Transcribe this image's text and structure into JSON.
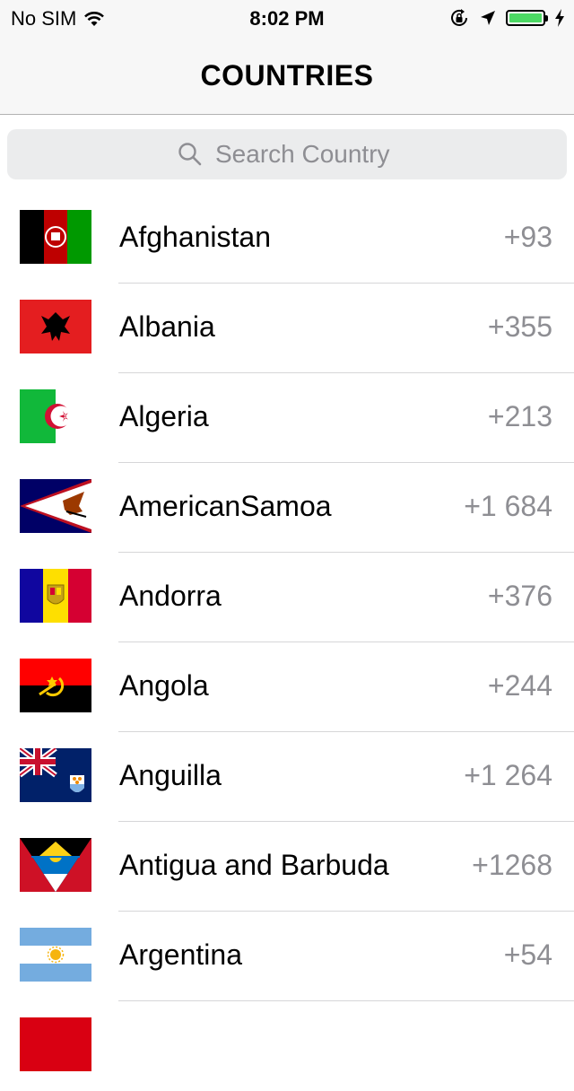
{
  "status_bar": {
    "carrier": "No SIM",
    "time": "8:02 PM",
    "battery_color": "#4cd964"
  },
  "nav": {
    "title": "COUNTRIES"
  },
  "search": {
    "placeholder": "Search Country",
    "value": ""
  },
  "countries": [
    {
      "name": "Afghanistan",
      "code": "+93",
      "flag": "afghanistan-flag-icon"
    },
    {
      "name": "Albania",
      "code": "+355",
      "flag": "albania-flag-icon"
    },
    {
      "name": "Algeria",
      "code": "+213",
      "flag": "algeria-flag-icon"
    },
    {
      "name": "AmericanSamoa",
      "code": "+1 684",
      "flag": "american-samoa-flag-icon"
    },
    {
      "name": "Andorra",
      "code": "+376",
      "flag": "andorra-flag-icon"
    },
    {
      "name": "Angola",
      "code": "+244",
      "flag": "angola-flag-icon"
    },
    {
      "name": "Anguilla",
      "code": "+1 264",
      "flag": "anguilla-flag-icon"
    },
    {
      "name": "Antigua and Barbuda",
      "code": "+1268",
      "flag": "antigua-barbuda-flag-icon"
    },
    {
      "name": "Argentina",
      "code": "+54",
      "flag": "argentina-flag-icon"
    }
  ]
}
